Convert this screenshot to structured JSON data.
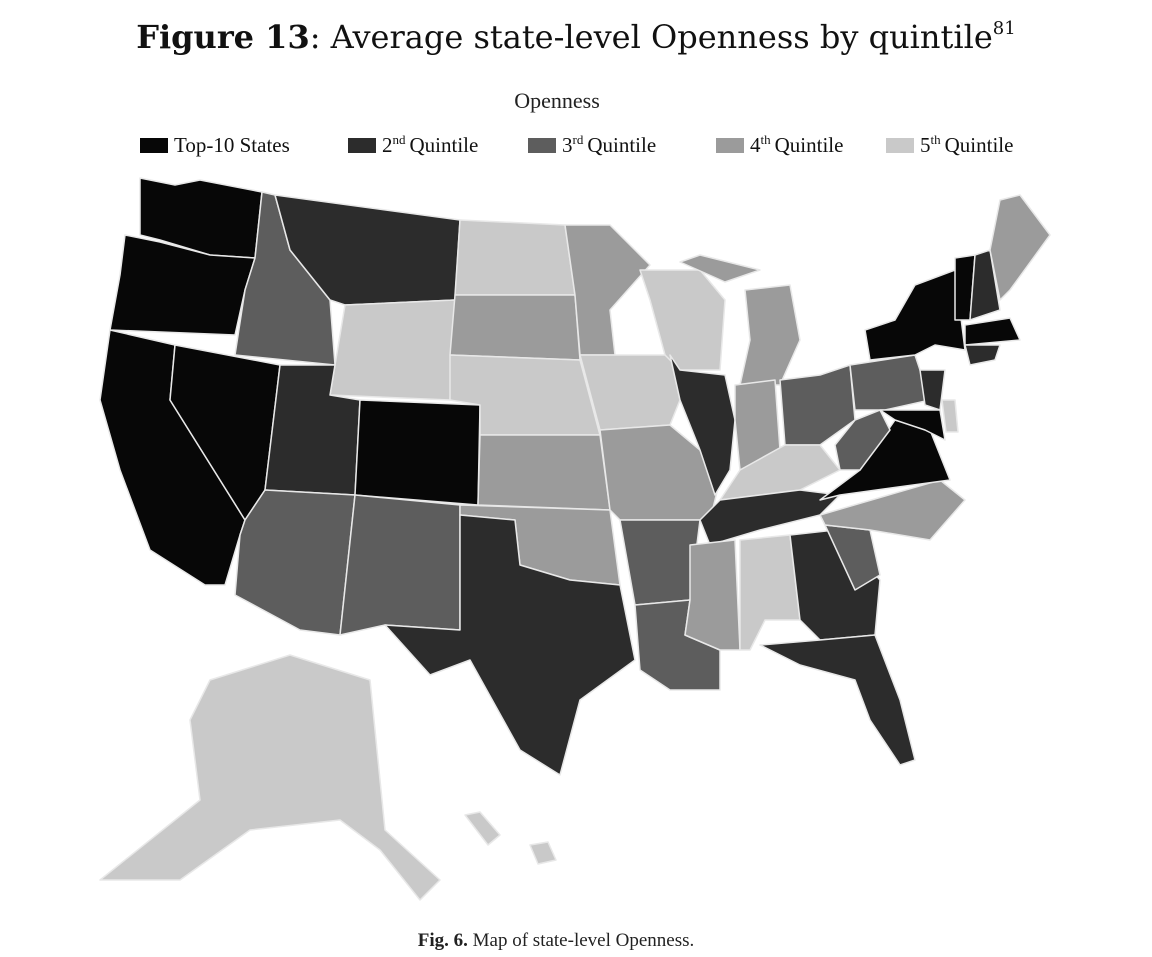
{
  "header": {
    "figure_label": "Figure 13",
    "title": ": Average state-level Openness by quintile",
    "footnote": "81"
  },
  "map": {
    "title": "Openness",
    "legend": [
      {
        "label": "Top-10 States",
        "color": "#070707"
      },
      {
        "ordinal": "2",
        "suffix": "nd",
        "label": "Quintile",
        "color": "#2c2c2c"
      },
      {
        "ordinal": "3",
        "suffix": "rd",
        "label": "Quintile",
        "color": "#5d5d5d"
      },
      {
        "ordinal": "4",
        "suffix": "th",
        "label": "Quintile",
        "color": "#9b9b9b"
      },
      {
        "ordinal": "5",
        "suffix": "th",
        "label": "Quintile",
        "color": "#c9c9c9"
      }
    ]
  },
  "caption": {
    "label": "Fig. 6.",
    "text": "Map of state-level Openness."
  }
}
